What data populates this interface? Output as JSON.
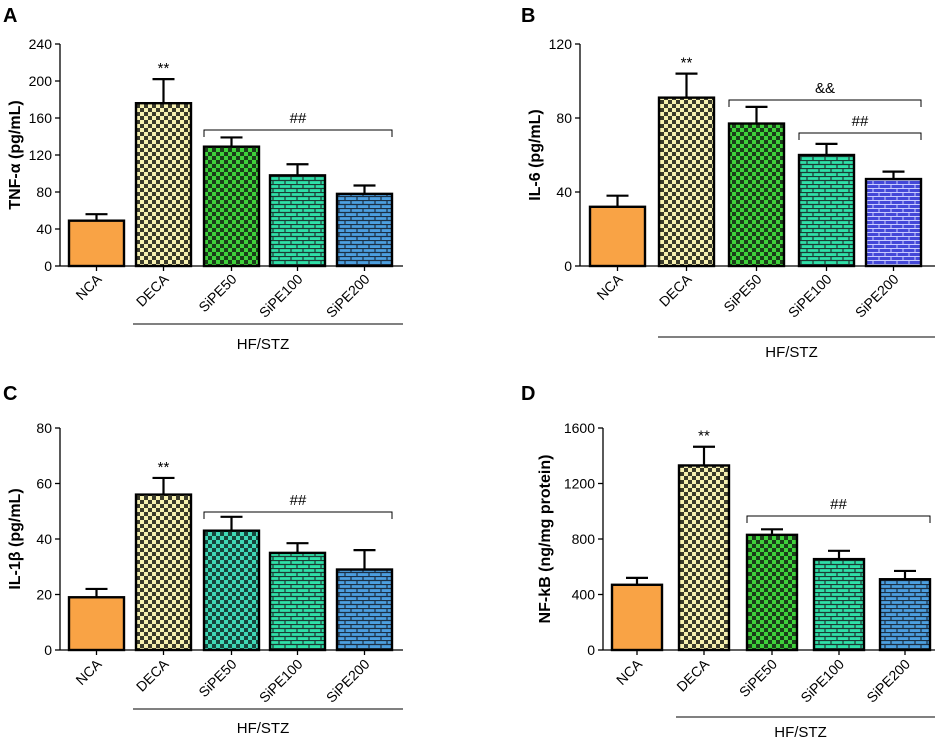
{
  "chart_data": [
    {
      "type": "bar",
      "panel": "A",
      "ylabel": "TNF-α (pg/mL)",
      "categories": [
        "NCA",
        "DECA",
        "SiPE50",
        "SiPE100",
        "SiPE200"
      ],
      "values": [
        49,
        176,
        129,
        98,
        78
      ],
      "errors": [
        7,
        26,
        10,
        12,
        9
      ],
      "ylim": [
        0,
        240
      ],
      "yticks": [
        "0",
        "40",
        "80",
        "120",
        "160",
        "200",
        "240"
      ],
      "group_label": "HF/STZ",
      "annotations": [
        {
          "text": "**",
          "bar": 1
        }
      ],
      "brackets": [
        {
          "text": "##",
          "from": 2,
          "to": 4
        }
      ]
    },
    {
      "type": "bar",
      "panel": "B",
      "ylabel": "IL-6 (pg/mL)",
      "categories": [
        "NCA",
        "DECA",
        "SiPE50",
        "SiPE100",
        "SiPE200"
      ],
      "values": [
        32,
        91,
        77,
        60,
        47
      ],
      "errors": [
        6,
        13,
        9,
        6,
        4
      ],
      "ylim": [
        0,
        120
      ],
      "yticks": [
        "0",
        "40",
        "80",
        "120"
      ],
      "group_label": "HF/STZ",
      "annotations": [
        {
          "text": "**",
          "bar": 1
        }
      ],
      "brackets": [
        {
          "text": "&&",
          "from": 2,
          "to": 4
        },
        {
          "text": "##",
          "from": 3,
          "to": 4
        }
      ]
    },
    {
      "type": "bar",
      "panel": "C",
      "ylabel": "IL-1β (pg/mL)",
      "categories": [
        "NCA",
        "DECA",
        "SiPE50",
        "SiPE100",
        "SiPE200"
      ],
      "values": [
        19,
        56,
        43,
        35,
        29
      ],
      "errors": [
        3,
        6,
        5,
        3.5,
        7
      ],
      "ylim": [
        0,
        80
      ],
      "yticks": [
        "0",
        "20",
        "40",
        "60",
        "80"
      ],
      "group_label": "HF/STZ",
      "annotations": [
        {
          "text": "**",
          "bar": 1
        }
      ],
      "brackets": [
        {
          "text": "##",
          "from": 2,
          "to": 4
        }
      ]
    },
    {
      "type": "bar",
      "panel": "D",
      "ylabel": "NF-kB (ng/mg protein)",
      "categories": [
        "NCA",
        "DECA",
        "SiPE50",
        "SiPE100",
        "SiPE200"
      ],
      "values": [
        470,
        1330,
        830,
        655,
        510
      ],
      "errors": [
        50,
        135,
        40,
        60,
        60
      ],
      "ylim": [
        0,
        1600
      ],
      "yticks": [
        "0",
        "400",
        "800",
        "1200",
        "1600"
      ],
      "group_label": "HF/STZ",
      "annotations": [
        {
          "text": "**",
          "bar": 1
        }
      ],
      "brackets": [
        {
          "text": "##",
          "from": 2,
          "to": 4
        }
      ]
    }
  ],
  "styles": {
    "fills": [
      "solid-orange",
      "yellow-checker",
      "green-checker",
      "teal-brick",
      "blue-brick"
    ],
    "fills_B": [
      "solid-orange",
      "yellow-checker",
      "green-checker",
      "teal-brick",
      "indigo-brick"
    ],
    "fills_C": [
      "solid-orange",
      "yellow-checker",
      "teal-checker",
      "teal-brick",
      "blue-brick"
    ],
    "colors": {
      "orange": "#F9A345",
      "yellow": "#F3EC9A",
      "green": "#3ED13A",
      "teal": "#3FD9B6",
      "blue": "#4C9FE0",
      "indigo": "#4448D8",
      "mint": "#2FE0A8"
    }
  }
}
